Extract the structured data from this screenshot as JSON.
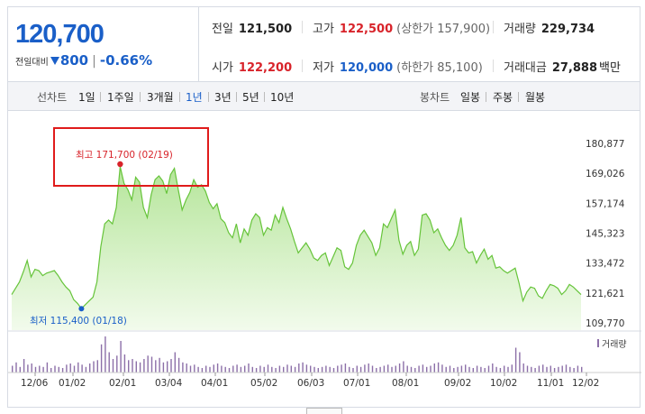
{
  "quote": {
    "price": "120,700",
    "change_label": "전일대비",
    "change_amount": "800",
    "change_pct": "-0.66%",
    "colors": {
      "up": "#d8232a",
      "down": "#1a5fc8"
    }
  },
  "stats": {
    "prev_close": {
      "label": "전일",
      "value": "121,500"
    },
    "high": {
      "label": "고가",
      "value": "122,500",
      "sub": "(상한가 157,900)"
    },
    "volume": {
      "label": "거래량",
      "value": "229,734"
    },
    "open": {
      "label": "시가",
      "value": "122,200"
    },
    "low": {
      "label": "저가",
      "value": "120,000",
      "sub": "(하한가 85,100)"
    },
    "trade_value": {
      "label": "거래대금",
      "value": "27,888",
      "unit": "백만"
    }
  },
  "period_bar": {
    "line_chart_label": "선차트",
    "periods": [
      "1일",
      "1주일",
      "3개월",
      "1년",
      "3년",
      "5년",
      "10년"
    ],
    "active_period": "1년",
    "candle_chart_label": "봉차트",
    "candle_periods": [
      "일봉",
      "주봉",
      "월봉"
    ]
  },
  "chart_data": {
    "type": "area",
    "x_tick_labels": [
      "12/06",
      "01/02",
      "02/01",
      "03/04",
      "04/01",
      "05/02",
      "06/03",
      "07/01",
      "08/01",
      "09/02",
      "10/02",
      "11/01",
      "12/02"
    ],
    "y_ticks": [
      "180,877",
      "169,026",
      "157,174",
      "145,323",
      "133,472",
      "121,621",
      "109,770"
    ],
    "ylim": [
      109770,
      180877
    ],
    "grid": false,
    "line_color": "#66c43a",
    "fill_color": "#b5e59a",
    "values": [
      121000,
      123500,
      126000,
      130000,
      134500,
      128000,
      131000,
      130500,
      128500,
      129500,
      130000,
      130500,
      128500,
      126000,
      124000,
      122500,
      119000,
      117500,
      115400,
      117000,
      118500,
      120000,
      126000,
      140000,
      149000,
      150500,
      149000,
      155500,
      171700,
      165000,
      162500,
      158500,
      167500,
      165500,
      155500,
      151500,
      160500,
      166500,
      168000,
      166000,
      161000,
      168500,
      171000,
      162500,
      154500,
      158500,
      161500,
      166500,
      163500,
      164500,
      162000,
      157500,
      155000,
      157000,
      151000,
      149500,
      145500,
      143500,
      149000,
      141500,
      147000,
      144500,
      150500,
      153000,
      151500,
      144500,
      147500,
      146500,
      152500,
      149500,
      155500,
      151000,
      147000,
      142000,
      137500,
      139500,
      141500,
      139000,
      135500,
      134500,
      136500,
      137500,
      132500,
      136000,
      139500,
      138500,
      132000,
      131000,
      133500,
      140500,
      144500,
      146500,
      144000,
      141500,
      136500,
      139500,
      149000,
      147500,
      151000,
      154500,
      142500,
      137000,
      140500,
      142000,
      136500,
      139000,
      152500,
      153000,
      150500,
      145500,
      147000,
      143500,
      140500,
      138500,
      140500,
      144500,
      151500,
      139500,
      137500,
      138000,
      133500,
      136500,
      139000,
      135000,
      136500,
      131500,
      132000,
      130500,
      129500,
      130500,
      131500,
      125500,
      118500,
      122000,
      124000,
      123500,
      120500,
      119500,
      122500,
      125000,
      124500,
      123500,
      121000,
      122500,
      125000,
      124000,
      122500,
      121000
    ],
    "low_annotation": {
      "text": "최저 115,400 (01/18)",
      "value": 115400
    },
    "high_annotation": {
      "text": "최고 171,700 (02/19)",
      "value": 171700
    },
    "volume": {
      "legend": "거래량",
      "values": [
        6,
        9,
        5,
        12,
        7,
        8,
        5,
        6,
        5,
        9,
        4,
        6,
        5,
        4,
        7,
        8,
        6,
        9,
        7,
        5,
        8,
        10,
        11,
        25,
        32,
        18,
        12,
        15,
        28,
        16,
        11,
        12,
        10,
        9,
        12,
        15,
        14,
        11,
        13,
        9,
        10,
        12,
        18,
        13,
        9,
        8,
        6,
        7,
        5,
        4,
        6,
        5,
        7,
        8,
        6,
        5,
        4,
        6,
        7,
        5,
        6,
        8,
        5,
        4,
        6,
        5,
        7,
        5,
        4,
        6,
        5,
        7,
        6,
        5,
        8,
        9,
        7,
        6,
        5,
        4,
        5,
        6,
        5,
        4,
        6,
        7,
        8,
        5,
        4,
        6,
        5,
        7,
        8,
        6,
        4,
        5,
        6,
        7,
        5,
        6,
        8,
        10,
        6,
        5,
        4,
        6,
        7,
        5,
        6,
        8,
        9,
        7,
        5,
        6,
        4,
        5,
        6,
        7,
        5,
        4,
        6,
        5,
        4,
        6,
        8,
        5,
        4,
        6,
        5,
        7,
        22,
        18,
        8,
        6,
        5,
        4,
        6,
        7,
        5,
        6,
        4,
        5,
        6,
        7,
        5,
        4,
        6,
        5
      ]
    }
  }
}
